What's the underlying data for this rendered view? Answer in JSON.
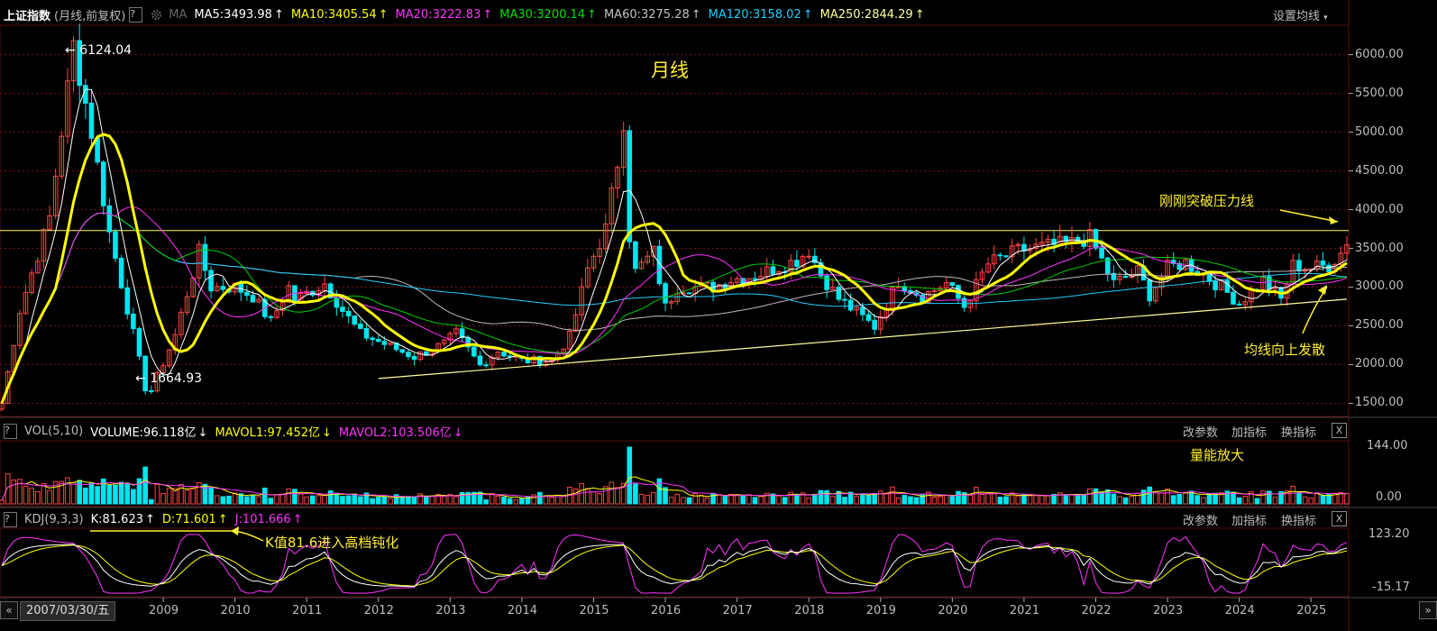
{
  "header": {
    "title": "上证指数",
    "subtitle": "(月线,前复权)",
    "help": "?",
    "ma_label": "MA",
    "ma": [
      {
        "text": "MA5:3493.98",
        "arrow": "↑",
        "color": "#ffffff"
      },
      {
        "text": "MA10:3405.54",
        "arrow": "↑",
        "color": "#ffff00"
      },
      {
        "text": "MA20:3222.83",
        "arrow": "↑",
        "color": "#ff33ff"
      },
      {
        "text": "MA30:3200.14",
        "arrow": "↑",
        "color": "#00e000"
      },
      {
        "text": "MA60:3275.28",
        "arrow": "↑",
        "color": "#c0c0c0"
      },
      {
        "text": "MA120:3158.02",
        "arrow": "↑",
        "color": "#22ccff"
      },
      {
        "text": "MA250:2844.29",
        "arrow": "↑",
        "color": "#ffff99"
      }
    ],
    "settings": "设置均线"
  },
  "vol_header": {
    "help": "?",
    "name": "VOL(5,10)",
    "items": [
      {
        "text": "VOLUME:96.118亿",
        "arrow": "↓",
        "color": "#ffffff"
      },
      {
        "text": "MAVOL1:97.452亿",
        "arrow": "↓",
        "color": "#ffff00"
      },
      {
        "text": "MAVOL2:103.506亿",
        "arrow": "↓",
        "color": "#ff33ff"
      }
    ]
  },
  "kdj_header": {
    "help": "?",
    "name": "KDJ(9,3,3)",
    "items": [
      {
        "text": "K:81.623",
        "arrow": "↑",
        "color": "#ffffff"
      },
      {
        "text": "D:71.601",
        "arrow": "↑",
        "color": "#ffff00"
      },
      {
        "text": "J:101.666",
        "arrow": "↑",
        "color": "#ff33ff"
      }
    ]
  },
  "panel_buttons": {
    "change": "改参数",
    "add": "加指标",
    "swap": "换指标",
    "close": "X"
  },
  "annotations": {
    "period": "月线",
    "high": "6124.04",
    "low": "1664.93",
    "pressure": "刚刚突破压力线",
    "diverge": "均线向上发散",
    "volume": "量能放大",
    "kdj": "K值81.6进入高档钝化"
  },
  "bottom": {
    "current_date": "2007/03/30/五",
    "nav_left": "«",
    "nav_right": "»"
  },
  "colors": {
    "up": "#ff4444",
    "down": "#00e5ee",
    "grid": "#7a1010",
    "annotation": "#ffee33"
  },
  "chart_data": {
    "type": "candlestick",
    "y_ticks": [
      "6000.00",
      "5500.00",
      "5000.00",
      "4500.00",
      "4000.00",
      "3500.00",
      "3000.00",
      "2500.00",
      "2000.00",
      "1500.00"
    ],
    "ylim": [
      1330,
      6380
    ],
    "x_years": [
      "2009",
      "2010",
      "2011",
      "2012",
      "2013",
      "2014",
      "2015",
      "2016",
      "2017",
      "2018",
      "2019",
      "2020",
      "2021",
      "2022",
      "2023",
      "2024",
      "2025"
    ],
    "x_range": [
      "2006-10",
      "2025-07"
    ],
    "pressure_line": 3730,
    "series": [
      {
        "name": "上证指数",
        "period": "月线",
        "points": [
          [
            "2006-10",
            1500
          ],
          [
            "2007-01",
            2700
          ],
          [
            "2007-06",
            3900
          ],
          [
            "2007-10",
            6124
          ],
          [
            "2008-01",
            5000
          ],
          [
            "2008-04",
            3700
          ],
          [
            "2008-08",
            2400
          ],
          [
            "2008-10",
            1700
          ],
          [
            "2008-11",
            1665
          ],
          [
            "2009-03",
            2380
          ],
          [
            "2009-07",
            3450
          ],
          [
            "2009-09",
            3000
          ],
          [
            "2010-01",
            3000
          ],
          [
            "2010-04",
            2880
          ],
          [
            "2010-07",
            2550
          ],
          [
            "2010-10",
            3000
          ],
          [
            "2010-11",
            2830
          ],
          [
            "2011-04",
            3050
          ],
          [
            "2011-07",
            2700
          ],
          [
            "2011-10",
            2400
          ],
          [
            "2012-01",
            2300
          ],
          [
            "2012-07",
            2100
          ],
          [
            "2012-12",
            2270
          ],
          [
            "2013-02",
            2400
          ],
          [
            "2013-06",
            1990
          ],
          [
            "2013-09",
            2180
          ],
          [
            "2014-01",
            2050
          ],
          [
            "2014-06",
            2050
          ],
          [
            "2014-09",
            2360
          ],
          [
            "2014-12",
            3230
          ],
          [
            "2015-03",
            3750
          ],
          [
            "2015-05",
            4610
          ],
          [
            "2015-06",
            5166
          ],
          [
            "2015-07",
            3660
          ],
          [
            "2015-08",
            3200
          ],
          [
            "2015-11",
            3450
          ],
          [
            "2016-01",
            2740
          ],
          [
            "2016-03",
            3000
          ],
          [
            "2016-09",
            3000
          ],
          [
            "2016-12",
            3100
          ],
          [
            "2017-04",
            3150
          ],
          [
            "2017-11",
            3350
          ],
          [
            "2018-01",
            3480
          ],
          [
            "2018-03",
            3160
          ],
          [
            "2018-06",
            2850
          ],
          [
            "2018-12",
            2490
          ],
          [
            "2019-04",
            3080
          ],
          [
            "2019-08",
            2880
          ],
          [
            "2019-12",
            3050
          ],
          [
            "2020-03",
            2750
          ],
          [
            "2020-07",
            3300
          ],
          [
            "2020-12",
            3470
          ],
          [
            "2021-02",
            3500
          ],
          [
            "2021-09",
            3570
          ],
          [
            "2021-12",
            3640
          ],
          [
            "2022-04",
            3050
          ],
          [
            "2022-08",
            3200
          ],
          [
            "2022-10",
            2900
          ],
          [
            "2023-01",
            3250
          ],
          [
            "2023-04",
            3320
          ],
          [
            "2023-10",
            3000
          ],
          [
            "2024-01",
            2790
          ],
          [
            "2024-05",
            3090
          ],
          [
            "2024-08",
            2840
          ],
          [
            "2024-10",
            3280
          ],
          [
            "2025-01",
            3250
          ],
          [
            "2025-04",
            3280
          ],
          [
            "2025-06",
            3440
          ],
          [
            "2025-07",
            3600
          ]
        ]
      },
      {
        "name": "MA250",
        "points": [
          [
            "2006-10",
            1500
          ],
          [
            "2012-01",
            1820
          ],
          [
            "2025-07",
            2844
          ]
        ]
      },
      {
        "name": "VOL"
      },
      {
        "name": "KDJ"
      }
    ],
    "vol_ticks": [
      "144.00",
      "0.00"
    ],
    "kdj_ticks": [
      "123.20",
      "-15.17"
    ]
  }
}
